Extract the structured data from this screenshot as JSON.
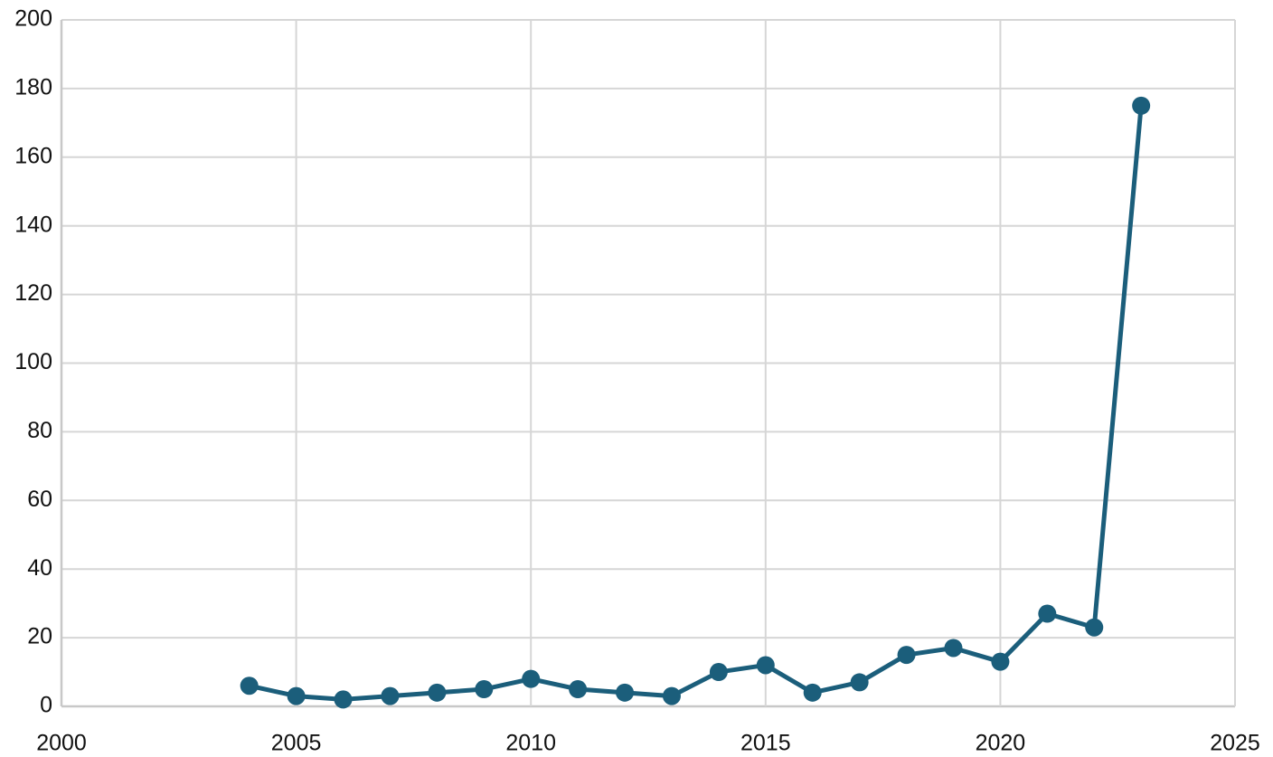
{
  "chart_data": {
    "type": "line",
    "x": [
      2004,
      2005,
      2006,
      2007,
      2008,
      2009,
      2010,
      2011,
      2012,
      2013,
      2014,
      2015,
      2016,
      2017,
      2018,
      2019,
      2020,
      2021,
      2022,
      2023
    ],
    "series": [
      {
        "color": "#1b5e7b",
        "values": [
          6,
          3,
          2,
          3,
          4,
          5,
          8,
          5,
          4,
          3,
          10,
          12,
          4,
          7,
          15,
          17,
          13,
          27,
          23,
          175
        ]
      }
    ],
    "xlim": [
      2000,
      2025
    ],
    "xticks": [
      2000,
      2005,
      2010,
      2015,
      2020,
      2025
    ],
    "ylim": [
      0,
      200
    ],
    "yticks": [
      0,
      20,
      40,
      60,
      80,
      100,
      120,
      140,
      160,
      180,
      200
    ],
    "grid": true
  }
}
